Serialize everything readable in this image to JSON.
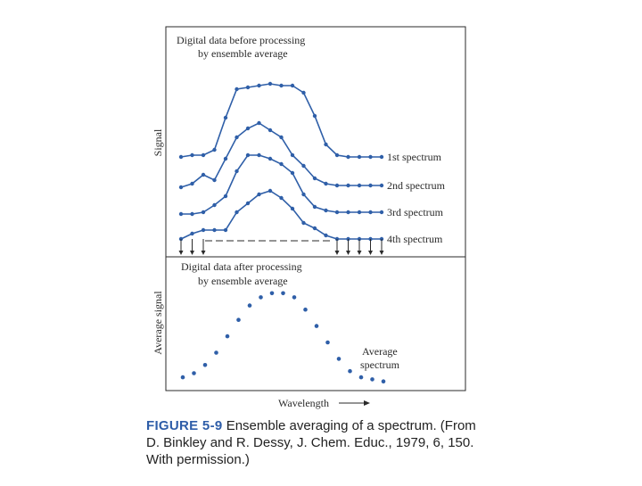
{
  "colors": {
    "series": "#2f5fa8",
    "frame": "#2a2a2a",
    "caption_label": "#2e5da8",
    "text": "#2a2a2a"
  },
  "chart_data": [
    {
      "type": "line",
      "title": "Digital data before processing by ensemble average",
      "title_lines": [
        "Digital data before processing",
        "by ensemble average"
      ],
      "xlabel": "",
      "ylabel": "Signal",
      "grid": false,
      "legend": "inline labels at right end of each series",
      "x": [
        1,
        2,
        3,
        4,
        5,
        6,
        7,
        8,
        9,
        10,
        11,
        12,
        13,
        14,
        15,
        16,
        17,
        18,
        19
      ],
      "series": [
        {
          "name": "1st spectrum",
          "values": [
            10,
            11,
            11,
            14,
            32,
            48,
            49,
            50,
            51,
            50,
            50,
            46,
            33,
            17,
            11,
            10,
            10,
            10,
            10
          ]
        },
        {
          "name": "2nd spectrum",
          "values": [
            8,
            10,
            15,
            12,
            24,
            36,
            41,
            44,
            40,
            36,
            26,
            20,
            13,
            10,
            9,
            9,
            9,
            9,
            9
          ]
        },
        {
          "name": "3rd spectrum",
          "values": [
            7,
            7,
            8,
            12,
            17,
            31,
            40,
            40,
            38,
            35,
            30,
            18,
            11,
            9,
            8,
            8,
            8,
            8,
            8
          ]
        },
        {
          "name": "4th spectrum",
          "values": [
            5,
            8,
            10,
            10,
            10,
            20,
            25,
            30,
            32,
            28,
            22,
            14,
            11,
            7,
            5,
            5,
            5,
            5,
            5
          ]
        }
      ],
      "annotations": [
        "downward arrows mark sampled wavelengths",
        "dashed line indicates baseline gap"
      ]
    },
    {
      "type": "scatter",
      "title": "Digital data after processing by ensemble average",
      "title_lines": [
        "Digital data after processing",
        "by ensemble average"
      ],
      "xlabel": "Wavelength",
      "ylabel": "Average signal",
      "grid": false,
      "legend": "inline label near lower right",
      "series": [
        {
          "name": "Average spectrum",
          "label_lines": [
            "Average",
            "spectrum"
          ],
          "x": [
            1,
            2,
            3,
            4,
            5,
            6,
            7,
            8,
            9,
            10,
            11,
            12,
            13,
            14,
            15,
            16,
            17,
            18,
            19
          ],
          "values": [
            3,
            5,
            9,
            15,
            23,
            31,
            38,
            42,
            44,
            44,
            42,
            36,
            28,
            20,
            12,
            6,
            3,
            2,
            1
          ]
        }
      ]
    }
  ],
  "caption": {
    "label": "FIGURE 5-9",
    "text": "Ensemble averaging of a spectrum. (From D. Binkley and R. Dessy, J. Chem. Educ., 1979, 6, 150. With permission.)"
  }
}
